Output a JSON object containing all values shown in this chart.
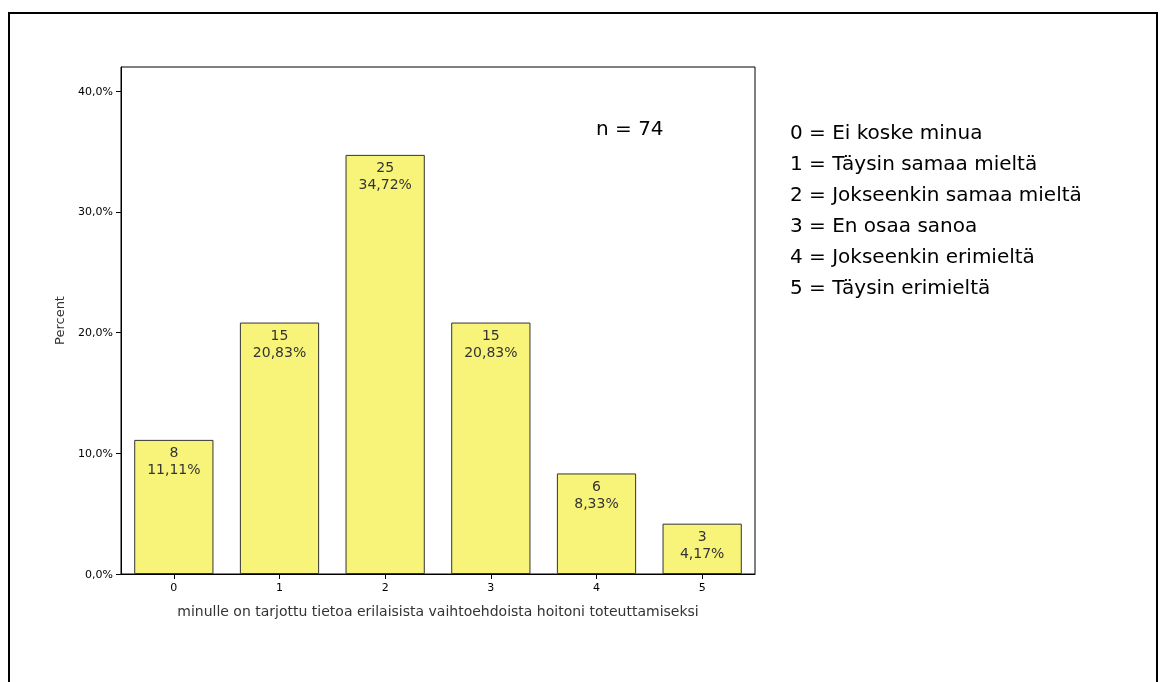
{
  "chart_data": {
    "type": "bar",
    "xlabel": "minulle on tarjottu tietoa erilaisista vaihtoehdoista hoitoni toteuttamiseksi",
    "ylabel": "Percent",
    "categories": [
      "0",
      "1",
      "2",
      "3",
      "4",
      "5"
    ],
    "values": [
      11.11,
      20.83,
      34.72,
      20.83,
      8.33,
      4.17
    ],
    "value_labels": [
      "8\n11,11%",
      "15\n20,83%",
      "25\n34,72%",
      "15\n20,83%",
      "6\n8,33%",
      "3\n4,17%"
    ],
    "color": "#f8f47a",
    "ylim": [
      0,
      42
    ],
    "yticks": [
      {
        "value": 0,
        "label": "0,0%"
      },
      {
        "value": 10,
        "label": "10,0%"
      },
      {
        "value": 20,
        "label": "20,0%"
      },
      {
        "value": 30,
        "label": "30,0%"
      },
      {
        "value": 40,
        "label": "40,0%"
      }
    ],
    "grid": false,
    "annotations": [
      "n = 74",
      "0 = Ei koske minua",
      "1 = Täysin samaa mieltä",
      "2 = Jokseenkin samaa mieltä",
      "3 = En osaa sanoa",
      "4 = Jokseenkin erimieltä",
      "5 = Täysin erimieltä"
    ]
  }
}
